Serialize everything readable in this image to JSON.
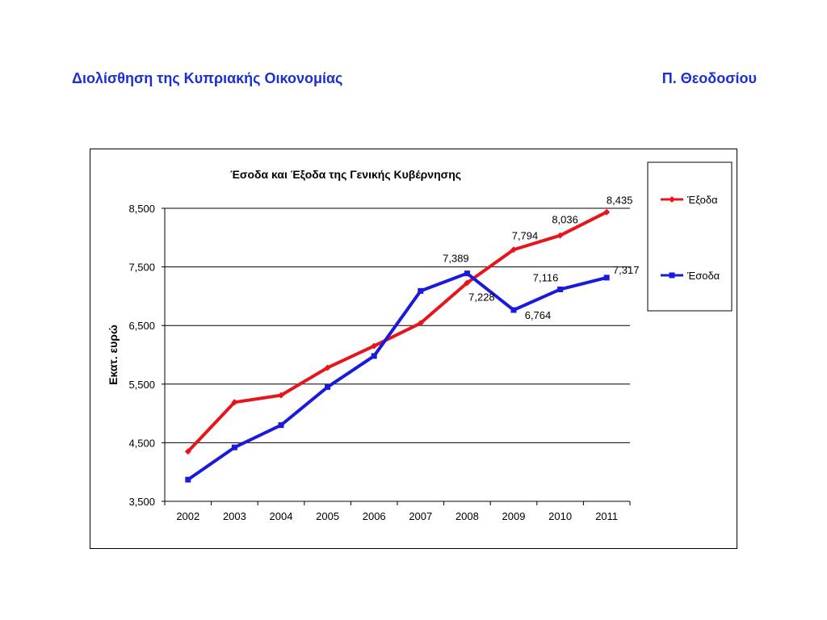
{
  "header": {
    "left_title": "Διολίσθηση της Κυπριακής Οικονομίας",
    "right_author": "Π. Θεοδοσίου",
    "color": "#1b2fd6"
  },
  "chart_data": {
    "type": "line",
    "title": "Έσοδα και Έξοδα της Γενικής Κυβέρνησης",
    "xlabel": "",
    "ylabel": "Εκατ. ευρώ",
    "categories": [
      "2002",
      "2003",
      "2004",
      "2005",
      "2006",
      "2007",
      "2008",
      "2009",
      "2010",
      "2011"
    ],
    "ylim": [
      3500,
      8500
    ],
    "yticks": [
      3500,
      4500,
      5500,
      6500,
      7500,
      8500
    ],
    "ytick_labels": [
      "3,500",
      "4,500",
      "5,500",
      "6,500",
      "7,500",
      "8,500"
    ],
    "grid": true,
    "legend_position": "right",
    "series": [
      {
        "name": "Έξοδα",
        "color": "#e8141c",
        "marker": "diamond",
        "values": [
          4350,
          5190,
          5310,
          5780,
          6150,
          6540,
          7228,
          7794,
          8036,
          8435
        ],
        "data_labels": [
          {
            "index": 6,
            "text": "7,228"
          },
          {
            "index": 7,
            "text": "7,794"
          },
          {
            "index": 8,
            "text": "8,036"
          },
          {
            "index": 9,
            "text": "8,435"
          }
        ]
      },
      {
        "name": "Έσοδα",
        "color": "#1a1adc",
        "marker": "square",
        "values": [
          3870,
          4420,
          4800,
          5450,
          5980,
          7090,
          7389,
          6764,
          7116,
          7317
        ],
        "data_labels": [
          {
            "index": 6,
            "text": "7,389"
          },
          {
            "index": 7,
            "text": "6,764"
          },
          {
            "index": 8,
            "text": "7,116"
          },
          {
            "index": 9,
            "text": "7,317"
          }
        ]
      }
    ]
  }
}
